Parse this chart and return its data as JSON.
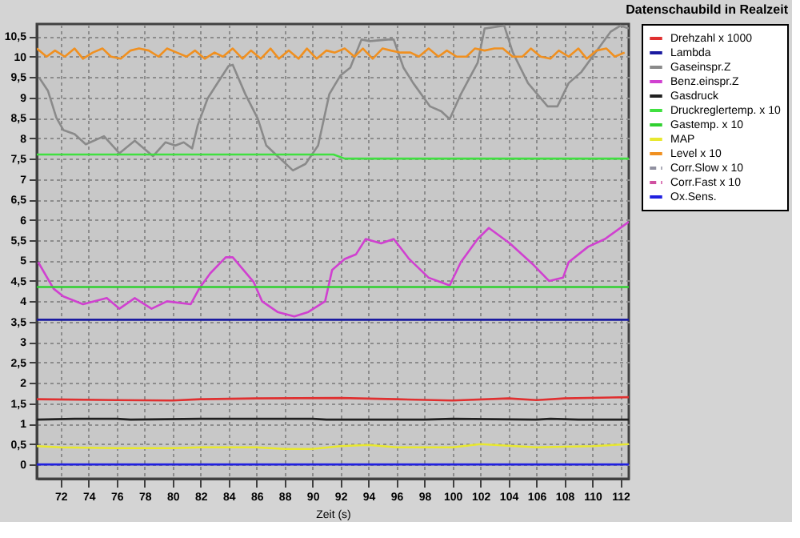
{
  "chart_data": {
    "type": "line",
    "title": "Datenschaubild in Realzeit",
    "xlabel": "Zeit (s)",
    "xlim": [
      70.3,
      112.6
    ],
    "xticks": [
      72,
      74,
      76,
      78,
      80,
      82,
      84,
      86,
      88,
      90,
      92,
      94,
      96,
      98,
      100,
      102,
      104,
      106,
      108,
      110,
      112
    ],
    "ylim": [
      -0.35,
      10.8
    ],
    "yticks": [
      {
        "value": 0,
        "label": "0"
      },
      {
        "value": 0.5,
        "label": "0,5"
      },
      {
        "value": 1,
        "label": "1"
      },
      {
        "value": 1.5,
        "label": "1,5"
      },
      {
        "value": 2,
        "label": "2"
      },
      {
        "value": 2.5,
        "label": "2,5"
      },
      {
        "value": 3,
        "label": "3"
      },
      {
        "value": 3.5,
        "label": "3,5"
      },
      {
        "value": 4,
        "label": "4"
      },
      {
        "value": 4.5,
        "label": "4,5"
      },
      {
        "value": 5,
        "label": "5"
      },
      {
        "value": 5.5,
        "label": "5,5"
      },
      {
        "value": 6,
        "label": "6"
      },
      {
        "value": 6.5,
        "label": "6,5"
      },
      {
        "value": 7,
        "label": "7"
      },
      {
        "value": 7.5,
        "label": "7,5"
      },
      {
        "value": 8,
        "label": "8"
      },
      {
        "value": 8.5,
        "label": "8,5"
      },
      {
        "value": 9,
        "label": "9"
      },
      {
        "value": 9.5,
        "label": "9,5"
      },
      {
        "value": 10,
        "label": "10"
      },
      {
        "value": 10.5,
        "label": "10,5"
      }
    ],
    "grid": true,
    "legend": "right",
    "marker": "none",
    "line_style": "solid",
    "series": [
      {
        "name": "Drehzahl x 1000",
        "color": "#e03030",
        "x": [
          70.3,
          76,
          80,
          82,
          86,
          92,
          96,
          100,
          104,
          106,
          108,
          112.6
        ],
        "values": [
          1.6,
          1.58,
          1.57,
          1.6,
          1.62,
          1.63,
          1.6,
          1.57,
          1.62,
          1.58,
          1.62,
          1.65
        ]
      },
      {
        "name": "Lambda",
        "color": "#1a1aa0",
        "x": [
          70.3,
          112.6
        ],
        "values": [
          3.55,
          3.55
        ]
      },
      {
        "name": "Gaseinspr.Z",
        "color": "#8a8a8a",
        "x": [
          70.5,
          71.1,
          71.7,
          72.2,
          73.0,
          73.8,
          75.1,
          76.2,
          77.3,
          78.6,
          79.5,
          80.2,
          80.8,
          81.4,
          81.8,
          82.5,
          83.0,
          84.0,
          84.3,
          85.2,
          86.1,
          86.7,
          87.5,
          88.6,
          89.5,
          90.4,
          91.2,
          92.0,
          92.7,
          93.5,
          94.1,
          95.4,
          95.8,
          96.5,
          97.2,
          98.4,
          99.2,
          99.8,
          100.6,
          101.8,
          102.3,
          103.7,
          104.3,
          105.4,
          106.8,
          107.5,
          108.3,
          109.2,
          111.3,
          112.0,
          112.6
        ],
        "values": [
          9.47,
          9.16,
          8.5,
          8.2,
          8.1,
          7.85,
          8.05,
          7.63,
          7.94,
          7.56,
          7.9,
          7.82,
          7.9,
          7.75,
          8.32,
          8.97,
          9.24,
          9.77,
          9.8,
          9.08,
          8.47,
          7.82,
          7.56,
          7.21,
          7.37,
          7.82,
          9.08,
          9.54,
          9.73,
          10.42,
          10.38,
          10.42,
          10.42,
          9.73,
          9.35,
          8.78,
          8.66,
          8.47,
          9.08,
          9.85,
          10.69,
          10.76,
          10.11,
          9.35,
          8.78,
          8.78,
          9.35,
          9.62,
          10.61,
          10.76,
          10.69
        ]
      },
      {
        "name": "Benz.einspr.Z",
        "color": "#d040d0",
        "x": [
          70.4,
          71.5,
          72.2,
          73.6,
          75.3,
          76.2,
          77.3,
          78.5,
          79.6,
          81.3,
          81.9,
          82.7,
          83.8,
          84.3,
          85.8,
          86.4,
          87.5,
          88.7,
          89.7,
          90.9,
          91.4,
          92.3,
          93.1,
          93.8,
          94.9,
          95.8,
          96.9,
          98.3,
          99.8,
          100.6,
          101.8,
          102.6,
          104.1,
          105.8,
          106.9,
          107.9,
          108.3,
          109.7,
          110.9,
          112.6
        ],
        "values": [
          4.96,
          4.31,
          4.12,
          3.93,
          4.08,
          3.82,
          4.08,
          3.82,
          4.0,
          3.93,
          4.31,
          4.69,
          5.08,
          5.08,
          4.47,
          4.0,
          3.74,
          3.63,
          3.74,
          4.0,
          4.77,
          5.04,
          5.15,
          5.53,
          5.42,
          5.53,
          5.04,
          4.58,
          4.39,
          4.96,
          5.53,
          5.8,
          5.42,
          4.89,
          4.5,
          4.58,
          4.96,
          5.34,
          5.53,
          5.95
        ]
      },
      {
        "name": "Gasdruck",
        "color": "#202020",
        "x": [
          70.3,
          73,
          76,
          77,
          82,
          86,
          90,
          91,
          98,
          100,
          106,
          107,
          109,
          112.6
        ],
        "values": [
          1.1,
          1.12,
          1.12,
          1.1,
          1.12,
          1.12,
          1.12,
          1.1,
          1.1,
          1.12,
          1.1,
          1.12,
          1.1,
          1.1
        ]
      },
      {
        "name": "Druckreglertemp. x 10",
        "color": "#40e040",
        "x": [
          70.3,
          91.5,
          92.3,
          112.6
        ],
        "values": [
          7.6,
          7.6,
          7.5,
          7.5
        ]
      },
      {
        "name": "Gastemp. x 10",
        "color": "#30d030",
        "x": [
          70.3,
          112.6
        ],
        "values": [
          4.35,
          4.35
        ]
      },
      {
        "name": "MAP",
        "color": "#e8e830",
        "x": [
          70.3,
          72,
          76,
          80,
          82,
          86,
          88,
          90,
          92,
          94,
          96,
          100,
          102,
          106,
          110,
          112.6
        ],
        "values": [
          0.45,
          0.42,
          0.4,
          0.4,
          0.42,
          0.42,
          0.38,
          0.38,
          0.45,
          0.48,
          0.42,
          0.42,
          0.5,
          0.42,
          0.45,
          0.5
        ]
      },
      {
        "name": "Level x 10",
        "color": "#f09020",
        "x": [
          70.3,
          71,
          71.6,
          72.3,
          73,
          73.6,
          74.3,
          75,
          75.6,
          76.3,
          77,
          77.6,
          78.3,
          79,
          79.6,
          80.3,
          81,
          81.6,
          82.3,
          83,
          83.6,
          84.3,
          85,
          85.6,
          86.3,
          87,
          87.6,
          88.3,
          89,
          89.6,
          90.3,
          91,
          91.6,
          92.3,
          93,
          93.6,
          94.3,
          95,
          95.6,
          96.3,
          97,
          97.6,
          98.3,
          99,
          99.6,
          100.3,
          101,
          101.6,
          102.3,
          103,
          103.6,
          104.3,
          105,
          105.6,
          106.3,
          107,
          107.6,
          108.3,
          109,
          109.6,
          110.3,
          111,
          111.6,
          112.3
        ],
        "values": [
          10.2,
          10.0,
          10.15,
          10.0,
          10.2,
          9.95,
          10.1,
          10.2,
          10.0,
          9.95,
          10.15,
          10.2,
          10.15,
          10.0,
          10.2,
          10.1,
          10.0,
          10.15,
          9.95,
          10.1,
          10.0,
          10.2,
          9.95,
          10.15,
          9.95,
          10.2,
          9.95,
          10.15,
          9.95,
          10.2,
          9.95,
          10.15,
          10.1,
          10.2,
          10.0,
          10.2,
          9.95,
          10.2,
          10.15,
          10.1,
          10.1,
          10.0,
          10.2,
          10.0,
          10.15,
          10.0,
          10.0,
          10.2,
          10.15,
          10.2,
          10.2,
          10.0,
          10.0,
          10.2,
          10.0,
          9.95,
          10.15,
          10.0,
          10.2,
          9.95,
          10.15,
          10.2,
          10.0,
          10.1
        ]
      },
      {
        "name": "Corr.Slow x 10",
        "color": "#9090a0",
        "line_style": "dashed"
      },
      {
        "name": "Corr.Fast x 10",
        "color": "#d050a0",
        "line_style": "dashed"
      },
      {
        "name": "Ox.Sens.",
        "color": "#2020e0",
        "x": [
          70.3,
          112.6
        ],
        "values": [
          0,
          0
        ]
      }
    ]
  }
}
